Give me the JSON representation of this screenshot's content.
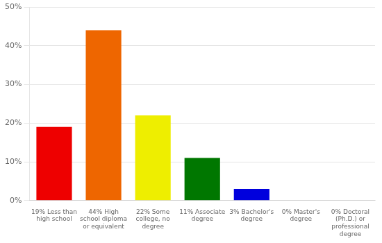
{
  "chart_data": {
    "type": "bar",
    "categories": [
      "19% Less than\nhigh school",
      "44% High\nschool diploma\nor equivalent",
      "22% Some\ncollege, no\ndegree",
      "11% Associate\ndegree",
      "3% Bachelor's\ndegree",
      "0% Master's\ndegree",
      "0% Doctoral\n(Ph.D.) or\nprofessional\ndegree"
    ],
    "values": [
      19,
      44,
      22,
      11,
      3,
      0,
      0
    ],
    "colors": [
      "#ee0000",
      "#ee6600",
      "#eeee00",
      "#007700",
      "#0000dd",
      "#9900bb",
      "#ff00ff"
    ],
    "ylim": [
      0,
      50
    ],
    "yticks": [
      {
        "value": 0,
        "label": "0%"
      },
      {
        "value": 10,
        "label": "10%"
      },
      {
        "value": 20,
        "label": "20%"
      },
      {
        "value": 30,
        "label": "30%"
      },
      {
        "value": 40,
        "label": "40%"
      },
      {
        "value": 50,
        "label": "50%"
      }
    ],
    "grid": true
  }
}
